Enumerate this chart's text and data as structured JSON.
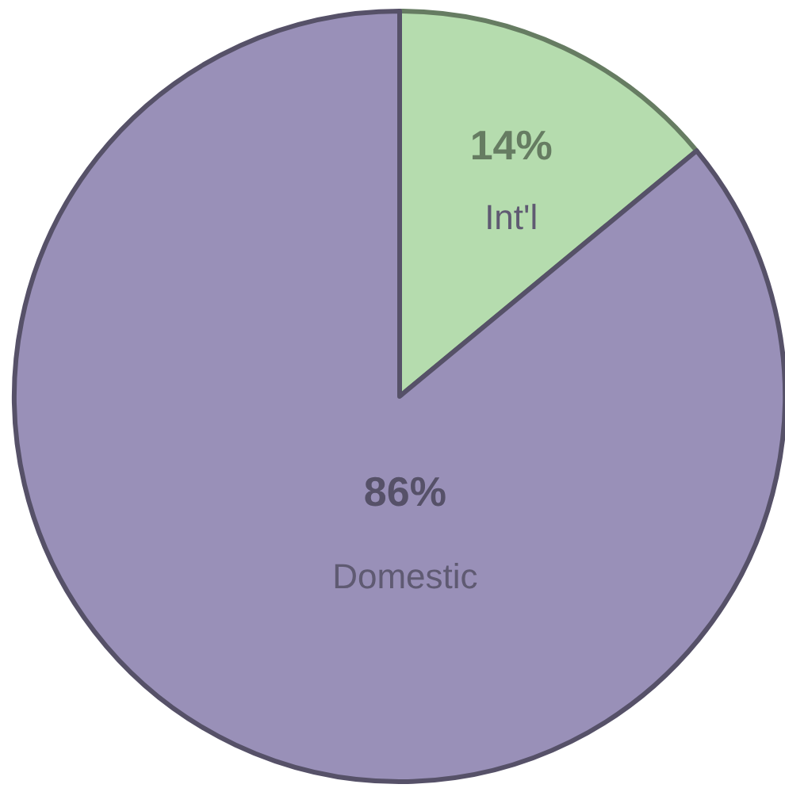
{
  "chart_data": {
    "type": "pie",
    "categories": [
      "Int'l",
      "Domestic"
    ],
    "values": [
      14,
      86
    ],
    "colors": [
      "#b5dcae",
      "#9990b8"
    ],
    "value_labels": [
      "14%",
      "86%"
    ]
  }
}
